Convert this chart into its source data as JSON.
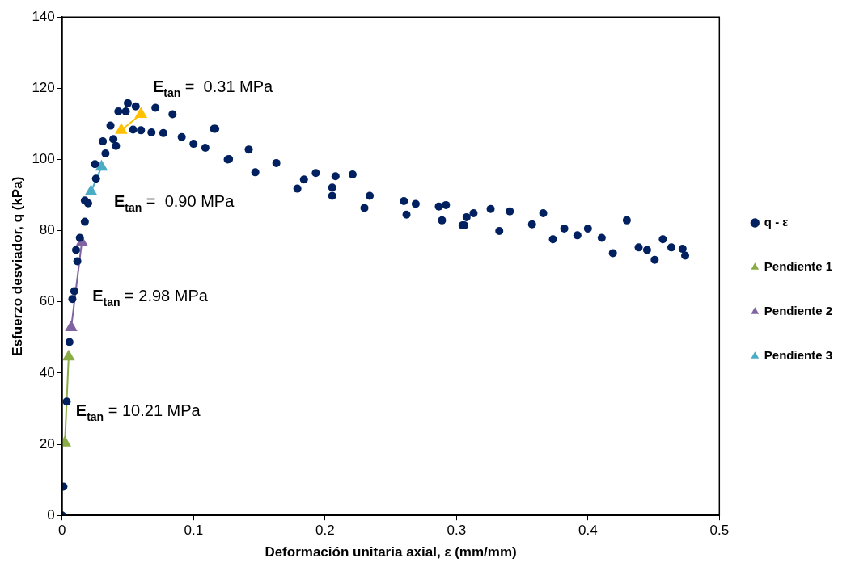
{
  "chart_data": {
    "type": "scatter",
    "xlabel": "Deformación unitaria axial, ε (mm/mm)",
    "ylabel": "Esfuerzo desviador, q (kPa)",
    "xlim": [
      0,
      0.5
    ],
    "xticks": [
      0,
      0.1,
      0.2,
      0.3,
      0.4,
      0.5
    ],
    "ylim": [
      0,
      140
    ],
    "yticks": [
      0,
      20,
      40,
      60,
      80,
      100,
      120,
      140
    ],
    "legend": "right",
    "series": [
      {
        "name": "q - ε",
        "type": "scatter",
        "marker": "circle",
        "color": "#002060",
        "x": [
          0,
          0.001,
          0.0035,
          0.0056,
          0.0078,
          0.0093,
          0.0106,
          0.0116,
          0.0135,
          0.0173,
          0.0173,
          0.0198,
          0.025,
          0.0258,
          0.031,
          0.033,
          0.0368,
          0.039,
          0.041,
          0.0428,
          0.0485,
          0.05,
          0.054,
          0.056,
          0.06,
          0.068,
          0.071,
          0.077,
          0.084,
          0.091,
          0.1,
          0.109,
          0.1155,
          0.1165,
          0.126,
          0.127,
          0.142,
          0.147,
          0.163,
          0.179,
          0.184,
          0.193,
          0.2055,
          0.2055,
          0.208,
          0.221,
          0.23,
          0.234,
          0.26,
          0.262,
          0.269,
          0.2866,
          0.289,
          0.292,
          0.3046,
          0.306,
          0.3077,
          0.313,
          0.326,
          0.3326,
          0.3406,
          0.3575,
          0.366,
          0.3734,
          0.382,
          0.392,
          0.4,
          0.4105,
          0.419,
          0.4296,
          0.4386,
          0.445,
          0.4508,
          0.457,
          0.4635,
          0.472,
          0.474
        ],
        "values": [
          0,
          8.1,
          32,
          48.7,
          60.8,
          63,
          74.6,
          71.4,
          78,
          82.5,
          88.5,
          87.7,
          98.7,
          94.6,
          105.1,
          101.7,
          109.5,
          105.7,
          103.8,
          113.5,
          113.5,
          115.8,
          108.4,
          114.9,
          108.2,
          107.6,
          114.5,
          107.4,
          112.7,
          106.3,
          104.4,
          103.3,
          108.6,
          108.6,
          100,
          100.1,
          102.8,
          96.4,
          99,
          91.8,
          94.4,
          96.2,
          92.1,
          89.8,
          95.3,
          95.8,
          86.4,
          89.8,
          88.3,
          84.5,
          87.5,
          86.8,
          82.9,
          87.2,
          81.5,
          81.5,
          83.8,
          84.9,
          86.1,
          79.9,
          85.4,
          81.8,
          84.9,
          77.6,
          80.6,
          78.7,
          80.6,
          78,
          73.7,
          82.9,
          75.3,
          74.6,
          71.8,
          77.6,
          75.3,
          74.9,
          73
        ]
      },
      {
        "name": "Pendiente 1",
        "type": "line",
        "marker": "triangle",
        "color": "#8aac46",
        "x": [
          0.0021,
          0.005
        ],
        "values": [
          20.4,
          44.6
        ]
      },
      {
        "name": "Pendiente 2",
        "type": "line",
        "marker": "triangle",
        "color": "#8064a2",
        "x": [
          0.0069,
          0.015
        ],
        "values": [
          52.8,
          76.7
        ]
      },
      {
        "name": "Pendiente 3",
        "type": "line",
        "marker": "triangle",
        "color": "#4bacc6",
        "x": [
          0.022,
          0.03
        ],
        "values": [
          91,
          97.9
        ]
      },
      {
        "type": "line",
        "marker": "triangle",
        "color": "#ffc000",
        "x": [
          0.045,
          0.06
        ],
        "values": [
          108.2,
          112.7
        ]
      }
    ],
    "annotations": [
      "E$_{tan}$ =  0.31 MPa",
      "E$_{tan}$ =  0.90 MPa",
      "E$_{tan}$ = 2.98 MPa",
      "E$_{tan}$ = 10.21 MPa"
    ]
  }
}
